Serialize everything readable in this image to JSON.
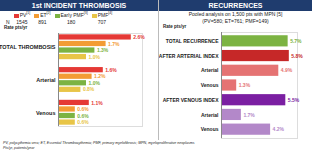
{
  "chart_data": [
    {
      "type": "bar",
      "orientation": "horizontal",
      "title": "1st INCIDENT THROMBOSIS",
      "n_label": "N",
      "rate_label": "Rate pts/yr",
      "categories": [
        "TOTAL THROMBOSIS",
        "Arterial",
        "Venous"
      ],
      "series": [
        {
          "name": "PV",
          "ref": "[1]",
          "n": 1545,
          "color": "#e53935",
          "values": [
            2.6,
            1.6,
            1.1
          ],
          "value_labels": [
            "2.6%",
            "1.6%",
            "1.1%"
          ]
        },
        {
          "name": "ET",
          "ref": "[2]",
          "n": 891,
          "color": "#f39c34",
          "values": [
            1.7,
            1.2,
            0.6
          ],
          "value_labels": [
            "1.7%",
            "1.2%",
            "0.6%"
          ]
        },
        {
          "name": "Early PMF",
          "ref": "[3]",
          "n": 180,
          "color": "#7cb342",
          "values": [
            1.3,
            1.0,
            0.6
          ],
          "value_labels": [
            "1.3%",
            "1.0%",
            "0.6%"
          ]
        },
        {
          "name": "PMF",
          "ref": "[4]",
          "n": 707,
          "color": "#e8c547",
          "values": [
            1.0,
            0.8,
            0.6
          ],
          "value_labels": [
            "1.0%",
            "0.8%",
            "0.6%"
          ]
        }
      ],
      "xlim": [
        0,
        3
      ],
      "xticks": [],
      "tick_labels": false,
      "data_labels": true,
      "grid": false,
      "caption": [
        "PV, polycythemia vera; ET, Essential Thrombocythemia; PMF, primary myelofibrosis; MPN, myeloproliferative neoplasms",
        "Pts/yr, patients/year"
      ]
    },
    {
      "type": "bar",
      "orientation": "horizontal",
      "title": "RECURRENCES",
      "subtitle": [
        "Pooled analysis on 1,500 pts with MPN [5]",
        "(PV=580; ET=761; PMF=149)"
      ],
      "rate_label": "Rate pts/yr",
      "categories": [
        "TOTAL RECURRENCE",
        "AFTER ARTERIAL INDEX",
        "Arterial",
        "Venous",
        "AFTER VENOUS INDEX",
        "Arterial",
        "Venous"
      ],
      "values": [
        5.7,
        5.8,
        4.9,
        1.3,
        5.5,
        1.7,
        4.2
      ],
      "value_labels": [
        "5.7%",
        "5.8%",
        "4.9%",
        "1.3%",
        "5.5%",
        "1.7%",
        "4.2%"
      ],
      "colors": [
        "#7cb342",
        "#c62828",
        "#e57373",
        "#e57373",
        "#7b1fa2",
        "#b388c9",
        "#b388c9"
      ],
      "xlim": [
        0,
        6.5
      ],
      "xticks": [],
      "tick_labels": false,
      "data_labels": true,
      "grid": false
    }
  ]
}
